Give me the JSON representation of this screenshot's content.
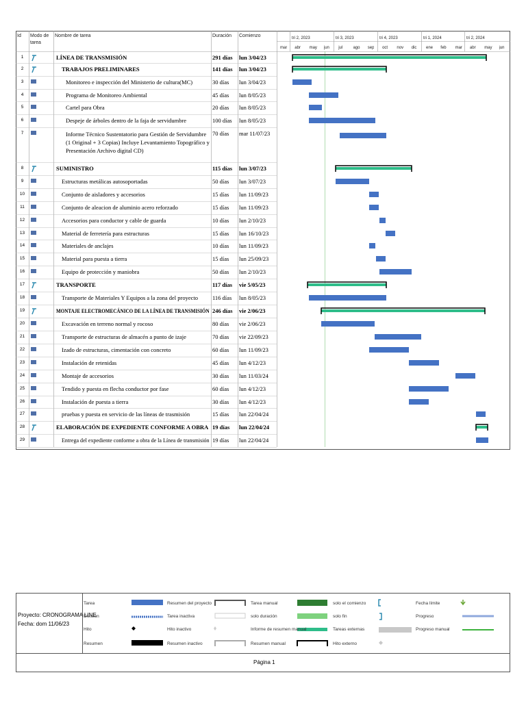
{
  "table": {
    "headers": [
      "Id",
      "Modo de tarea",
      "Nombre de tarea",
      "Duración",
      "Comienzo"
    ],
    "quarters": [
      "tri 2, 2023",
      "tri 3, 2023",
      "tri 4, 2023",
      "tri 1, 2024",
      "tri 2, 2024"
    ],
    "months": [
      "mar",
      "abr",
      "may",
      "jun",
      "jul",
      "ago",
      "sep",
      "oct",
      "nov",
      "dic",
      "ene",
      "feb",
      "mar",
      "abr",
      "may",
      "jun"
    ],
    "rows": [
      {
        "id": "1",
        "name": "LÍNEA DE TRANSMISIÓN",
        "duration": "291 días",
        "start": "lun 3/04/23",
        "summary": true
      },
      {
        "id": "2",
        "name": "TRABAJOS PRELIMINARES",
        "duration": "141 días",
        "start": "lun 3/04/23",
        "summary": true
      },
      {
        "id": "3",
        "name": "Monitoreo e inspección del Ministerio de cultura(MC)",
        "duration": "30 días",
        "start": "lun 3/04/23",
        "summary": false
      },
      {
        "id": "4",
        "name": "Programa de Monitoreo Ambiental",
        "duration": "45 días",
        "start": "lun 8/05/23",
        "summary": false
      },
      {
        "id": "5",
        "name": "Cartel para Obra",
        "duration": "20 días",
        "start": "lun 8/05/23",
        "summary": false
      },
      {
        "id": "6",
        "name": "Despeje de árboles dentro de la faja de servidumbre",
        "duration": "100 días",
        "start": "lun 8/05/23",
        "summary": false
      },
      {
        "id": "7",
        "name": "Informe Técnico Sustentatorio para Gestión de Servidumbre (1 Original + 3 Copias) Incluye Levantamiento Topográfico y Presentación Archivo digital CD)",
        "duration": "70 días",
        "start": "mar 11/07/23",
        "summary": false
      },
      {
        "id": "8",
        "name": "SUMINISTRO",
        "duration": "115 días",
        "start": "lun 3/07/23",
        "summary": true
      },
      {
        "id": "9",
        "name": "Estructuras metálicas autosoportadas",
        "duration": "50 días",
        "start": "lun 3/07/23",
        "summary": false
      },
      {
        "id": "10",
        "name": "Conjunto de aisladores y accesorios",
        "duration": "15 días",
        "start": "lun 11/09/23",
        "summary": false
      },
      {
        "id": "11",
        "name": "Conjunto de aleacion de aluminio acero reforzado",
        "duration": "15 días",
        "start": "lun 11/09/23",
        "summary": false
      },
      {
        "id": "12",
        "name": "Accesorios para conductor y cable de guarda",
        "duration": "10 días",
        "start": "lun 2/10/23",
        "summary": false
      },
      {
        "id": "13",
        "name": "Material de ferretería para estructuras",
        "duration": "15 días",
        "start": "lun 16/10/23",
        "summary": false
      },
      {
        "id": "14",
        "name": "Materiales de anclajes",
        "duration": "10 días",
        "start": "lun 11/09/23",
        "summary": false
      },
      {
        "id": "15",
        "name": "Material para puesta a tierra",
        "duration": "15 días",
        "start": "lun 25/09/23",
        "summary": false
      },
      {
        "id": "16",
        "name": "Equipo de protección y maniobra",
        "duration": "50 días",
        "start": "lun 2/10/23",
        "summary": false
      },
      {
        "id": "17",
        "name": "TRANSPORTE",
        "duration": "117 días",
        "start": "vie 5/05/23",
        "summary": true
      },
      {
        "id": "18",
        "name": "Transporte de Materiales Y Equipos a la zona del proyecto",
        "duration": "116 días",
        "start": "lun 8/05/23",
        "summary": false
      },
      {
        "id": "19",
        "name": "MONTAJE ELECTROMECÁNICO DE LA LÍNEA DE TRANSMISIÓN",
        "duration": "246 días",
        "start": "vie 2/06/23",
        "summary": true
      },
      {
        "id": "20",
        "name": "Excavación en terreno normal y rocoso",
        "duration": "80 días",
        "start": "vie 2/06/23",
        "summary": false
      },
      {
        "id": "21",
        "name": "Transporte de estructuras de almacén a punto de izaje",
        "duration": "70 días",
        "start": "vie 22/09/23",
        "summary": false
      },
      {
        "id": "22",
        "name": "Izado de estructuras, cimentación con concreto",
        "duration": "60 días",
        "start": "lun 11/09/23",
        "summary": false
      },
      {
        "id": "23",
        "name": "Instalación de retenidas",
        "duration": "45 días",
        "start": "lun 4/12/23",
        "summary": false
      },
      {
        "id": "24",
        "name": "Montaje de accesorios",
        "duration": "30 días",
        "start": "lun 11/03/24",
        "summary": false
      },
      {
        "id": "25",
        "name": "Tendido y puesta en flecha conductor por fase",
        "duration": "60 días",
        "start": "lun 4/12/23",
        "summary": false
      },
      {
        "id": "26",
        "name": "Instalación de puesta a tierra",
        "duration": "30 días",
        "start": "lun 4/12/23",
        "summary": false
      },
      {
        "id": "27",
        "name": "pruebas y puesta en servicio de las líneas de trasmisión",
        "duration": "15 días",
        "start": "lun 22/04/24",
        "summary": false
      },
      {
        "id": "28",
        "name": "ELABORACIÓN DE EXPEDIENTE CONFORME A OBRA",
        "duration": "19 días",
        "start": "lun 22/04/24",
        "summary": true
      },
      {
        "id": "29",
        "name": "Entrega del expediente conforme a obra de la Línea de transmisión",
        "duration": "19 días",
        "start": "lun 22/04/24",
        "summary": false
      }
    ]
  },
  "legend": [
    [
      "Tarea",
      "Resumen del proyecto",
      "Tarea manual",
      "solo el comienzo",
      "Fecha límite"
    ],
    [
      "División",
      "Tarea inactiva",
      "solo duración",
      "solo fin",
      "Progreso"
    ],
    [
      "Hito",
      "Hito inactivo",
      "Informe de resumen manual",
      "Tareas externas",
      "Progreso manual"
    ],
    [
      "Resumen",
      "Resumen inactivo",
      "Resumen manual",
      "Hito externo"
    ]
  ],
  "footer": {
    "project": "Proyecto: CRONOGRAMA LINE",
    "date": "Fecha: dom 11/06/23",
    "page": "Página 1"
  }
}
